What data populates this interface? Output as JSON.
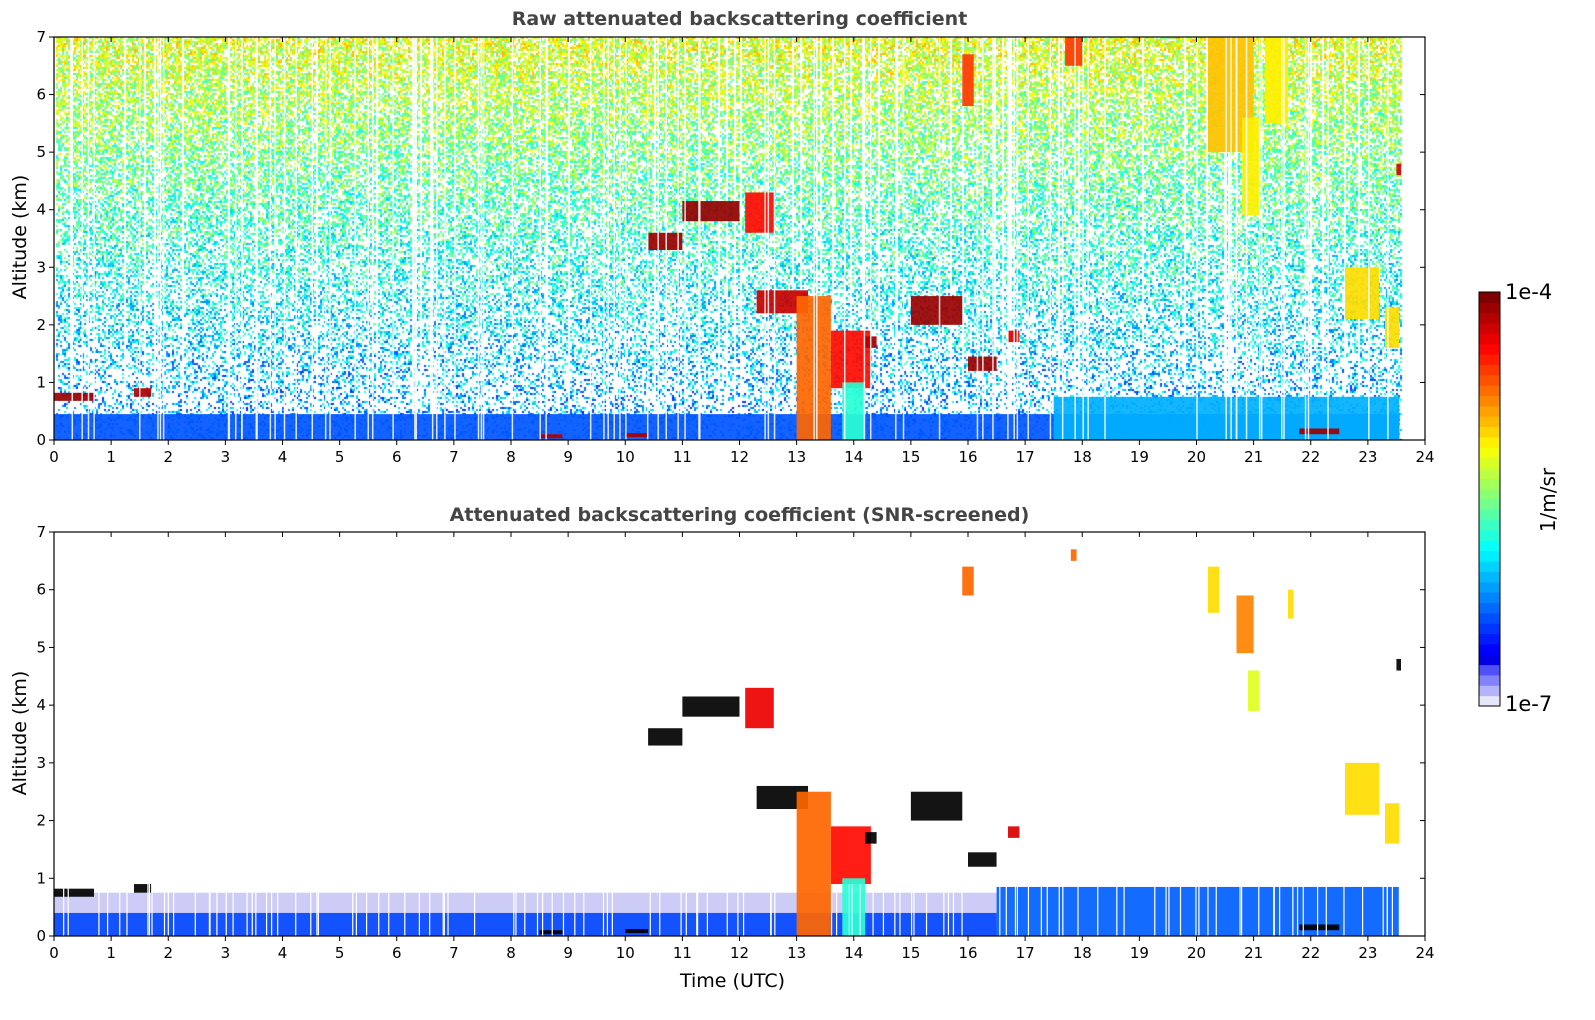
{
  "chart_data": {
    "type": "heatmap",
    "panels": [
      {
        "id": "raw",
        "title": "Raw attenuated backscattering coefficient",
        "ylabel": "Altitude (km)",
        "xlabel": "",
        "xlim": [
          0,
          24
        ],
        "ylim": [
          0,
          7
        ],
        "xticks": [
          "0",
          "1",
          "2",
          "3",
          "4",
          "5",
          "6",
          "7",
          "8",
          "9",
          "10",
          "11",
          "12",
          "13",
          "14",
          "15",
          "16",
          "17",
          "18",
          "19",
          "20",
          "21",
          "22",
          "23",
          "24"
        ],
        "yticks": [
          "0",
          "1",
          "2",
          "3",
          "4",
          "5",
          "6",
          "7"
        ],
        "noise": true,
        "features": [
          {
            "name": "boundary-layer",
            "t": [
              0,
              23.55
            ],
            "z": [
              0,
              0.45
            ],
            "level": 0.12
          },
          {
            "name": "boundary-layer-evening",
            "t": [
              17.5,
              23.55
            ],
            "z": [
              0,
              0.75
            ],
            "level": 0.22
          },
          {
            "name": "low-cloud",
            "t": [
              0,
              0.7
            ],
            "z": [
              0.68,
              0.82
            ],
            "level": 0.97
          },
          {
            "name": "low-cloud",
            "t": [
              1.4,
              1.7
            ],
            "z": [
              0.75,
              0.9
            ],
            "level": 0.95
          },
          {
            "name": "ground-echo",
            "t": [
              8.5,
              8.9
            ],
            "z": [
              0.03,
              0.1
            ],
            "level": 0.95
          },
          {
            "name": "ground-echo",
            "t": [
              10,
              10.4
            ],
            "z": [
              0.05,
              0.12
            ],
            "level": 0.95
          },
          {
            "name": "mid-cloud",
            "t": [
              10.4,
              11
            ],
            "z": [
              3.3,
              3.6
            ],
            "level": 0.97
          },
          {
            "name": "mid-cloud",
            "t": [
              11,
              12
            ],
            "z": [
              3.8,
              4.15
            ],
            "level": 0.98
          },
          {
            "name": "mid-cloud",
            "t": [
              12.1,
              12.6
            ],
            "z": [
              3.6,
              4.3
            ],
            "level": 0.85
          },
          {
            "name": "mid-cloud",
            "t": [
              12.3,
              13.2
            ],
            "z": [
              2.2,
              2.6
            ],
            "level": 0.92
          },
          {
            "name": "convective-column",
            "t": [
              13,
              13.6
            ],
            "z": [
              0,
              2.5
            ],
            "level": 0.75
          },
          {
            "name": "convective-column",
            "t": [
              13.6,
              14.3
            ],
            "z": [
              0.9,
              1.9
            ],
            "level": 0.85
          },
          {
            "name": "convective-column",
            "t": [
              13.8,
              14.2
            ],
            "z": [
              0,
              1.0
            ],
            "level": 0.35
          },
          {
            "name": "cloud",
            "t": [
              14.2,
              14.4
            ],
            "z": [
              1.6,
              1.8
            ],
            "level": 0.95
          },
          {
            "name": "cloud",
            "t": [
              15,
              15.9
            ],
            "z": [
              2.0,
              2.5
            ],
            "level": 0.97
          },
          {
            "name": "cloud",
            "t": [
              16,
              16.5
            ],
            "z": [
              1.2,
              1.45
            ],
            "level": 0.97
          },
          {
            "name": "cloud",
            "t": [
              16.7,
              16.9
            ],
            "z": [
              1.7,
              1.9
            ],
            "level": 0.9
          },
          {
            "name": "cirrus",
            "t": [
              15.9,
              16.1
            ],
            "z": [
              5.8,
              6.7
            ],
            "level": 0.8
          },
          {
            "name": "cirrus",
            "t": [
              17.7,
              18
            ],
            "z": [
              6.5,
              7
            ],
            "level": 0.8
          },
          {
            "name": "cirrus",
            "t": [
              20.2,
              21
            ],
            "z": [
              5.0,
              7
            ],
            "level": 0.65
          },
          {
            "name": "cirrus",
            "t": [
              20.8,
              21.1
            ],
            "z": [
              3.9,
              5.6
            ],
            "level": 0.6
          },
          {
            "name": "cirrus",
            "t": [
              21.2,
              21.6
            ],
            "z": [
              5.5,
              7
            ],
            "level": 0.6
          },
          {
            "name": "cloud",
            "t": [
              22.6,
              23.2
            ],
            "z": [
              2.1,
              3.0
            ],
            "level": 0.62
          },
          {
            "name": "cloud",
            "t": [
              23.3,
              23.55
            ],
            "z": [
              1.6,
              2.3
            ],
            "level": 0.62
          },
          {
            "name": "cloud",
            "t": [
              23.5,
              23.58
            ],
            "z": [
              4.6,
              4.8
            ],
            "level": 0.9
          },
          {
            "name": "surface-cloud",
            "t": [
              21.8,
              22.5
            ],
            "z": [
              0.1,
              0.2
            ],
            "level": 0.97
          }
        ]
      },
      {
        "id": "screened",
        "title": "Attenuated backscattering coefficient (SNR-screened)",
        "ylabel": "Altitude (km)",
        "xlabel": "Time (UTC)",
        "xlim": [
          0,
          24
        ],
        "ylim": [
          0,
          7
        ],
        "xticks": [
          "0",
          "1",
          "2",
          "3",
          "4",
          "5",
          "6",
          "7",
          "8",
          "9",
          "10",
          "11",
          "12",
          "13",
          "14",
          "15",
          "16",
          "17",
          "18",
          "19",
          "20",
          "21",
          "22",
          "23",
          "24"
        ],
        "yticks": [
          "0",
          "1",
          "2",
          "3",
          "4",
          "5",
          "6",
          "7"
        ],
        "noise": false,
        "features": [
          {
            "name": "boundary-layer-top",
            "t": [
              0,
              16.5
            ],
            "z": [
              0.4,
              0.75
            ],
            "level": 0.04
          },
          {
            "name": "boundary-layer",
            "t": [
              0,
              16.5
            ],
            "z": [
              0,
              0.4
            ],
            "level": 0.1
          },
          {
            "name": "boundary-layer",
            "t": [
              16.5,
              23.55
            ],
            "z": [
              0,
              0.85
            ],
            "level": 0.13
          },
          {
            "name": "low-cloud",
            "t": [
              0,
              0.7
            ],
            "z": [
              0.68,
              0.82
            ],
            "level": 1.0
          },
          {
            "name": "low-cloud",
            "t": [
              1.4,
              1.7
            ],
            "z": [
              0.75,
              0.9
            ],
            "level": 1.0
          },
          {
            "name": "ground-echo",
            "t": [
              8.5,
              8.9
            ],
            "z": [
              0.03,
              0.1
            ],
            "level": 1.0
          },
          {
            "name": "ground-echo",
            "t": [
              10,
              10.4
            ],
            "z": [
              0.05,
              0.12
            ],
            "level": 1.0
          },
          {
            "name": "mid-cloud",
            "t": [
              10.4,
              11
            ],
            "z": [
              3.3,
              3.6
            ],
            "level": 1.0
          },
          {
            "name": "mid-cloud",
            "t": [
              11,
              12
            ],
            "z": [
              3.8,
              4.15
            ],
            "level": 1.0
          },
          {
            "name": "mid-cloud",
            "t": [
              12.1,
              12.6
            ],
            "z": [
              3.6,
              4.3
            ],
            "level": 0.88
          },
          {
            "name": "mid-cloud",
            "t": [
              12.3,
              13.2
            ],
            "z": [
              2.2,
              2.6
            ],
            "level": 1.0
          },
          {
            "name": "convective-column",
            "t": [
              13,
              13.6
            ],
            "z": [
              0,
              2.5
            ],
            "level": 0.75
          },
          {
            "name": "convective-column",
            "t": [
              13.6,
              14.3
            ],
            "z": [
              0.9,
              1.9
            ],
            "level": 0.85
          },
          {
            "name": "convective-column",
            "t": [
              13.8,
              14.2
            ],
            "z": [
              0,
              1.0
            ],
            "level": 0.35
          },
          {
            "name": "cloud",
            "t": [
              14.2,
              14.4
            ],
            "z": [
              1.6,
              1.8
            ],
            "level": 1.0
          },
          {
            "name": "cloud",
            "t": [
              15,
              15.9
            ],
            "z": [
              2.0,
              2.5
            ],
            "level": 1.0
          },
          {
            "name": "cloud",
            "t": [
              16,
              16.5
            ],
            "z": [
              1.2,
              1.45
            ],
            "level": 1.0
          },
          {
            "name": "cloud",
            "t": [
              16.7,
              16.9
            ],
            "z": [
              1.7,
              1.9
            ],
            "level": 0.9
          },
          {
            "name": "cirrus",
            "t": [
              15.9,
              16.1
            ],
            "z": [
              5.9,
              6.4
            ],
            "level": 0.75
          },
          {
            "name": "cirrus",
            "t": [
              17.8,
              17.9
            ],
            "z": [
              6.5,
              6.7
            ],
            "level": 0.75
          },
          {
            "name": "cirrus",
            "t": [
              20.2,
              20.4
            ],
            "z": [
              5.6,
              6.4
            ],
            "level": 0.62
          },
          {
            "name": "cirrus",
            "t": [
              20.7,
              21.0
            ],
            "z": [
              4.9,
              5.9
            ],
            "level": 0.72
          },
          {
            "name": "cirrus",
            "t": [
              20.9,
              21.1
            ],
            "z": [
              3.9,
              4.6
            ],
            "level": 0.55
          },
          {
            "name": "cirrus",
            "t": [
              21.6,
              21.7
            ],
            "z": [
              5.5,
              6.0
            ],
            "level": 0.62
          },
          {
            "name": "cloud",
            "t": [
              22.6,
              23.2
            ],
            "z": [
              2.1,
              3.0
            ],
            "level": 0.62
          },
          {
            "name": "cloud",
            "t": [
              23.3,
              23.55
            ],
            "z": [
              1.6,
              2.3
            ],
            "level": 0.62
          },
          {
            "name": "cloud",
            "t": [
              23.5,
              23.58
            ],
            "z": [
              4.6,
              4.8
            ],
            "level": 1.0
          },
          {
            "name": "surface-cloud",
            "t": [
              21.8,
              22.5
            ],
            "z": [
              0.1,
              0.2
            ],
            "level": 1.0
          }
        ]
      }
    ],
    "colorbar": {
      "label": "1/m/sr",
      "max_label": "1e-4",
      "min_label": "1e-7",
      "scale": "log",
      "range": [
        1e-07,
        0.0001
      ],
      "colormap": "jet"
    }
  }
}
